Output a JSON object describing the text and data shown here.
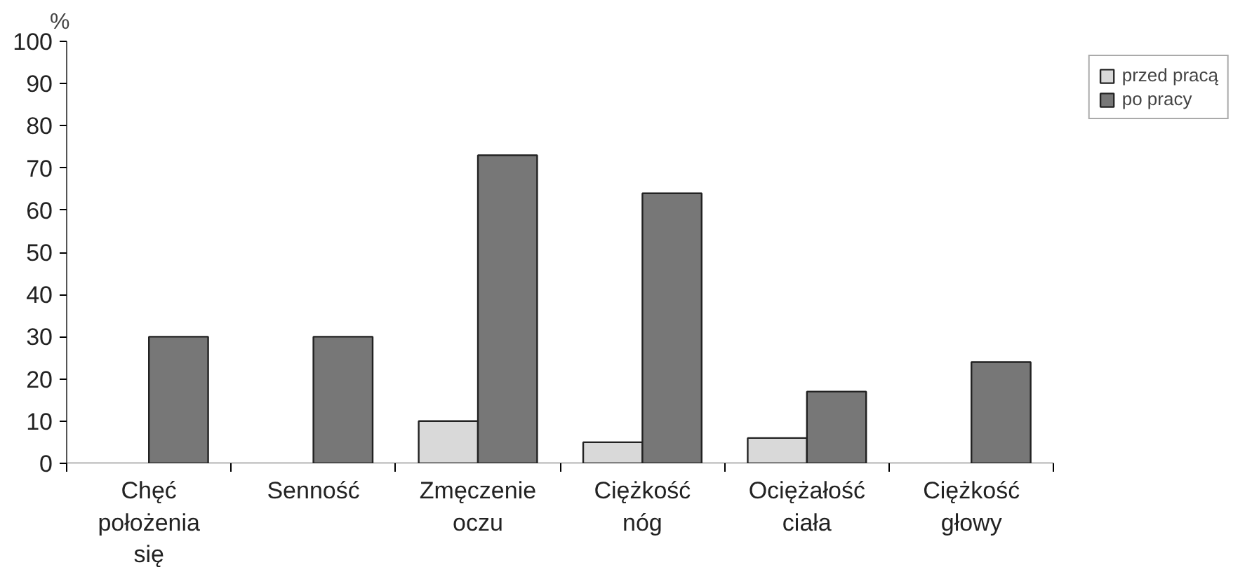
{
  "chart_data": {
    "type": "bar",
    "ylabel": "%",
    "categories": [
      "Chęć\npołożenia\nsię",
      "Senność",
      "Zmęczenie\noczu",
      "Ciężkość\nnóg",
      "Ociężałość\nciała",
      "Ciężkość\ngłowy"
    ],
    "series": [
      {
        "name": "przed pracą",
        "color": "#d9d9d9",
        "values": [
          null,
          null,
          10,
          5,
          6,
          null
        ]
      },
      {
        "name": "po pracy",
        "color": "#777777",
        "values": [
          30,
          30,
          73,
          64,
          17,
          24
        ]
      }
    ],
    "ylim": [
      0,
      100
    ],
    "yticks": [
      0,
      10,
      20,
      30,
      40,
      50,
      60,
      70,
      80,
      90,
      100
    ],
    "grid": false,
    "legend": "top right"
  }
}
